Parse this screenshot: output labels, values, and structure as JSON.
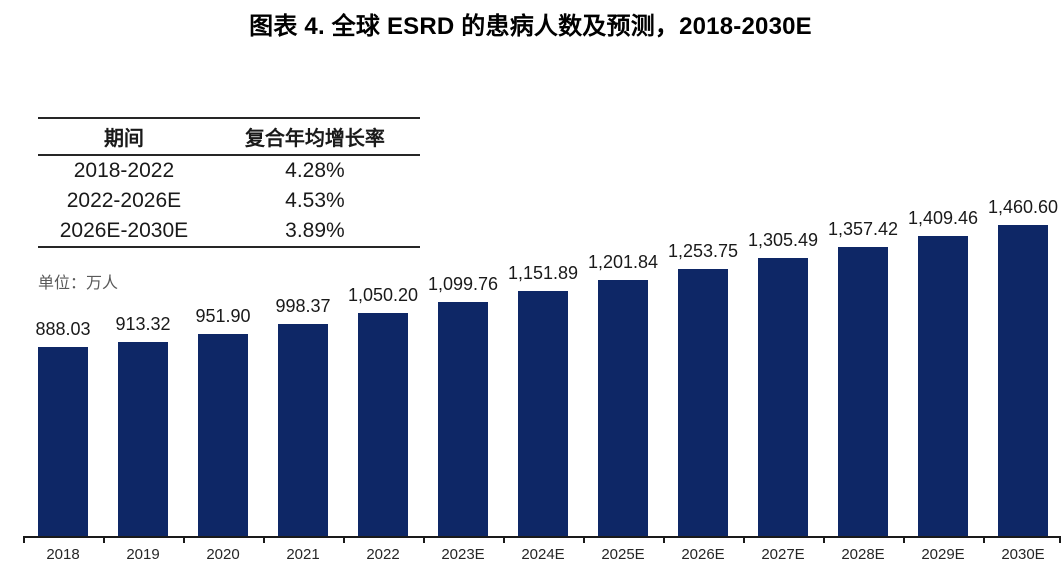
{
  "title": "图表 4. 全球 ESRD 的患病人数及预测，2018-2030E",
  "unit_label": "单位：万人",
  "cagr_table": {
    "headers": [
      "期间",
      "复合年均增长率"
    ],
    "rows": [
      [
        "2018-2022",
        "4.28%"
      ],
      [
        "2022-2026E",
        "4.53%"
      ],
      [
        "2026E-2030E",
        "3.89%"
      ]
    ]
  },
  "chart_data": {
    "type": "bar",
    "title": "图表 4. 全球 ESRD 的患病人数及预测，2018-2030E",
    "categories": [
      "2018",
      "2019",
      "2020",
      "2021",
      "2022",
      "2023E",
      "2024E",
      "2025E",
      "2026E",
      "2027E",
      "2028E",
      "2029E",
      "2030E"
    ],
    "values": [
      888.03,
      913.32,
      951.9,
      998.37,
      1050.2,
      1099.76,
      1151.89,
      1201.84,
      1253.75,
      1305.49,
      1357.42,
      1409.46,
      1460.6
    ],
    "value_labels": [
      "888.03",
      "913.32",
      "951.90",
      "998.37",
      "1,050.20",
      "1,099.76",
      "1,151.89",
      "1,201.84",
      "1,253.75",
      "1,305.49",
      "1,357.42",
      "1,409.46",
      "1,460.60"
    ],
    "xlabel": "",
    "ylabel": "单位：万人",
    "ylim": [
      0,
      1600
    ],
    "grid": false,
    "legend": false,
    "bar_color": "#0e2766"
  },
  "colors": {
    "bar": "#0e2766",
    "title_text": "#000000",
    "table_border": "#262626",
    "unit_text": "#595959",
    "axis_line": "#1a1a1a",
    "data_label_text": "#1a1a1a",
    "axis_label_text": "#262626"
  }
}
